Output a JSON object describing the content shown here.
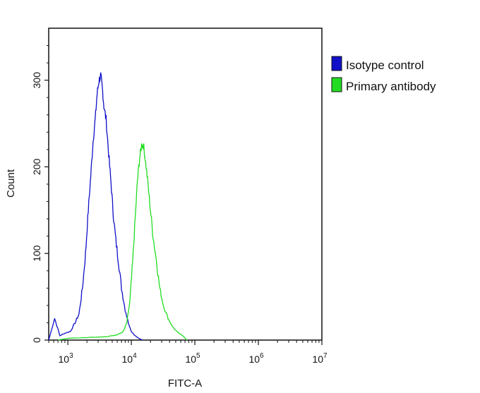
{
  "chart_data": {
    "type": "line",
    "title": "",
    "xlabel": "FITC-A",
    "ylabel": "Count",
    "x_scale": "log",
    "xlim": [
      500,
      10000000
    ],
    "ylim": [
      0,
      360
    ],
    "grid": false,
    "legend_position": "top-right",
    "x_ticks": [
      {
        "value": 1000,
        "base": "10",
        "exp": "3"
      },
      {
        "value": 10000,
        "base": "10",
        "exp": "4"
      },
      {
        "value": 100000,
        "base": "10",
        "exp": "5"
      },
      {
        "value": 1000000,
        "base": "10",
        "exp": "6"
      },
      {
        "value": 10000000,
        "base": "10",
        "exp": "7"
      }
    ],
    "y_ticks": [
      {
        "value": 0,
        "label": "0"
      },
      {
        "value": 100,
        "label": "100"
      },
      {
        "value": 200,
        "label": "200"
      },
      {
        "value": 300,
        "label": "300"
      }
    ],
    "series": [
      {
        "name": "Isotype control",
        "color": "#1010c8",
        "points": [
          [
            500,
            0
          ],
          [
            620,
            25
          ],
          [
            750,
            5
          ],
          [
            900,
            8
          ],
          [
            1100,
            10
          ],
          [
            1300,
            20
          ],
          [
            1500,
            30
          ],
          [
            1700,
            60
          ],
          [
            1900,
            100
          ],
          [
            2100,
            150
          ],
          [
            2300,
            190
          ],
          [
            2500,
            230
          ],
          [
            2700,
            255
          ],
          [
            2900,
            285
          ],
          [
            3100,
            300
          ],
          [
            3300,
            305
          ],
          [
            3500,
            290
          ],
          [
            3700,
            270
          ],
          [
            4000,
            255
          ],
          [
            4400,
            215
          ],
          [
            4800,
            180
          ],
          [
            5200,
            145
          ],
          [
            5700,
            115
          ],
          [
            6300,
            90
          ],
          [
            7000,
            60
          ],
          [
            8000,
            35
          ],
          [
            9000,
            20
          ],
          [
            10000,
            10
          ],
          [
            11500,
            5
          ],
          [
            13000,
            2
          ],
          [
            15000,
            0
          ]
        ]
      },
      {
        "name": "Primary antibody",
        "color": "#22dd22",
        "points": [
          [
            700,
            0
          ],
          [
            1000,
            2
          ],
          [
            2000,
            3
          ],
          [
            4000,
            4
          ],
          [
            6000,
            6
          ],
          [
            7500,
            10
          ],
          [
            8500,
            20
          ],
          [
            9500,
            45
          ],
          [
            10500,
            90
          ],
          [
            11500,
            140
          ],
          [
            12500,
            185
          ],
          [
            13500,
            210
          ],
          [
            14500,
            225
          ],
          [
            15500,
            225
          ],
          [
            16500,
            210
          ],
          [
            18000,
            185
          ],
          [
            20000,
            150
          ],
          [
            22000,
            120
          ],
          [
            25000,
            90
          ],
          [
            28000,
            60
          ],
          [
            32000,
            40
          ],
          [
            38000,
            25
          ],
          [
            45000,
            15
          ],
          [
            55000,
            8
          ],
          [
            65000,
            5
          ],
          [
            75000,
            0
          ]
        ]
      }
    ]
  }
}
